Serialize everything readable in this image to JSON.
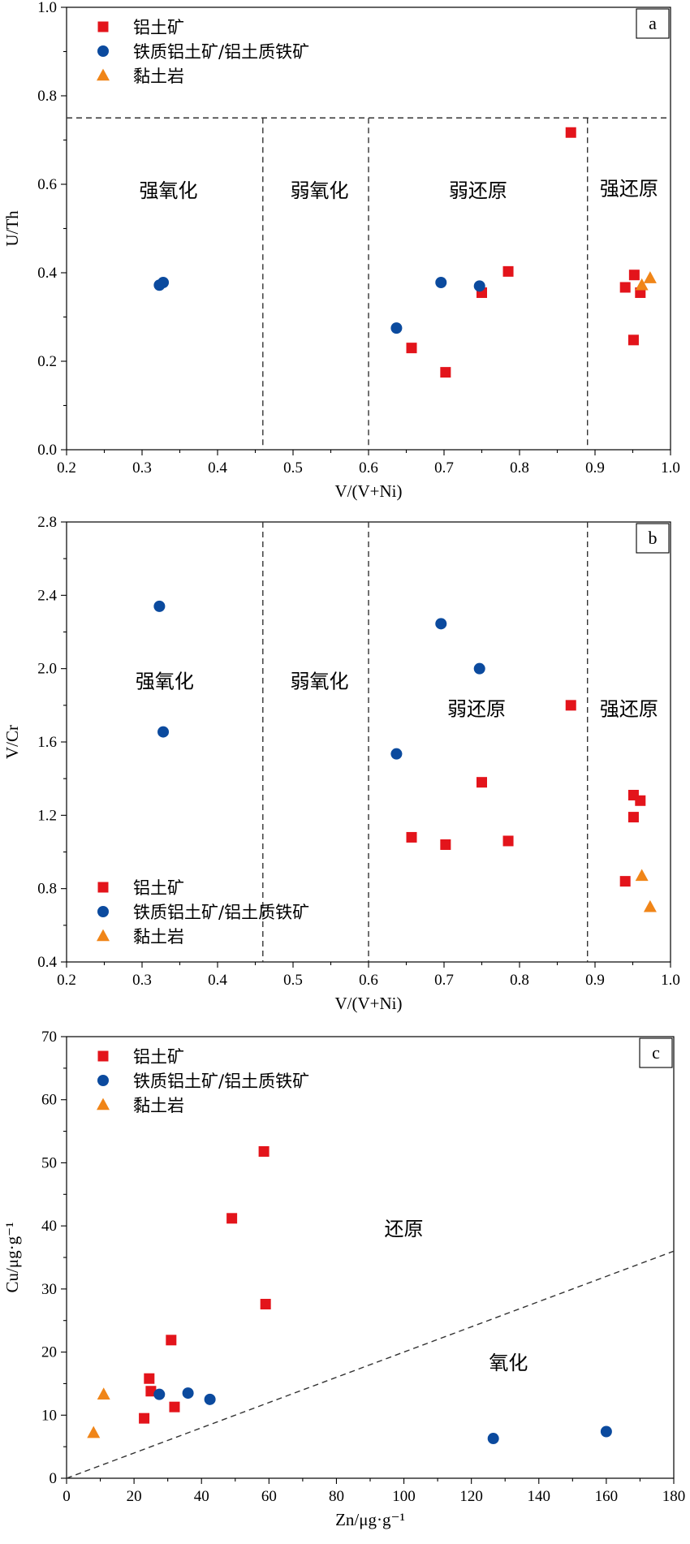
{
  "colors": {
    "bauxite": "#e3141b",
    "ferruginous": "#0b4a9e",
    "claystone": "#f08518"
  },
  "legend": [
    {
      "key": "bauxite",
      "label": "铝土矿",
      "marker": "square"
    },
    {
      "key": "ferruginous",
      "label": "铁质铝土矿/铝土质铁矿",
      "marker": "circle"
    },
    {
      "key": "claystone",
      "label": "黏土岩",
      "marker": "triangle"
    }
  ],
  "chart_data": [
    {
      "id": "a",
      "type": "scatter",
      "panel_letter": "a",
      "xlabel": "V/(V+Ni)",
      "ylabel": "U/Th",
      "xlim": [
        0.2,
        1.0
      ],
      "ylim": [
        0.0,
        1.0
      ],
      "xticks": [
        "0.2",
        "0.3",
        "0.4",
        "0.5",
        "0.6",
        "0.7",
        "0.8",
        "0.9",
        "1.0"
      ],
      "yticks": [
        "0.0",
        "0.2",
        "0.4",
        "0.6",
        "0.8",
        "1.0"
      ],
      "legend_position": "top-left",
      "vlines": [
        0.46,
        0.6,
        0.89
      ],
      "hlines": [
        0.75
      ],
      "regions": [
        {
          "label": "强氧化",
          "x": 0.335,
          "y": 0.585
        },
        {
          "label": "弱氧化",
          "x": 0.535,
          "y": 0.585
        },
        {
          "label": "弱还原",
          "x": 0.745,
          "y": 0.585
        },
        {
          "label": "强还原",
          "x": 0.945,
          "y": 0.59
        }
      ],
      "series": [
        {
          "key": "bauxite",
          "name": "铝土矿",
          "points": [
            [
              0.657,
              0.23
            ],
            [
              0.702,
              0.175
            ],
            [
              0.75,
              0.355
            ],
            [
              0.785,
              0.403
            ],
            [
              0.868,
              0.717
            ],
            [
              0.94,
              0.367
            ],
            [
              0.952,
              0.395
            ],
            [
              0.96,
              0.355
            ],
            [
              0.951,
              0.248
            ]
          ]
        },
        {
          "key": "ferruginous",
          "name": "铁质铝土矿/铝土质铁矿",
          "points": [
            [
              0.323,
              0.372
            ],
            [
              0.328,
              0.378
            ],
            [
              0.637,
              0.275
            ],
            [
              0.696,
              0.378
            ],
            [
              0.747,
              0.37
            ]
          ]
        },
        {
          "key": "claystone",
          "name": "黏土岩",
          "points": [
            [
              0.962,
              0.372
            ],
            [
              0.973,
              0.388
            ]
          ]
        }
      ]
    },
    {
      "id": "b",
      "type": "scatter",
      "panel_letter": "b",
      "xlabel": "V/(V+Ni)",
      "ylabel": "V/Cr",
      "xlim": [
        0.2,
        1.0
      ],
      "ylim": [
        0.4,
        2.8
      ],
      "xticks": [
        "0.2",
        "0.3",
        "0.4",
        "0.5",
        "0.6",
        "0.7",
        "0.8",
        "0.9",
        "1.0"
      ],
      "yticks": [
        "0.4",
        "0.8",
        "1.2",
        "1.6",
        "2.0",
        "2.4",
        "2.8"
      ],
      "legend_position": "bottom-left",
      "vlines": [
        0.46,
        0.6,
        0.89
      ],
      "hlines": [],
      "regions": [
        {
          "label": "强氧化",
          "x": 0.33,
          "y": 1.93
        },
        {
          "label": "弱氧化",
          "x": 0.535,
          "y": 1.93
        },
        {
          "label": "弱还原",
          "x": 0.743,
          "y": 1.78
        },
        {
          "label": "强还原",
          "x": 0.945,
          "y": 1.78
        }
      ],
      "series": [
        {
          "key": "bauxite",
          "name": "铝土矿",
          "points": [
            [
              0.657,
              1.08
            ],
            [
              0.702,
              1.04
            ],
            [
              0.75,
              1.38
            ],
            [
              0.785,
              1.06
            ],
            [
              0.868,
              1.8
            ],
            [
              0.94,
              0.84
            ],
            [
              0.951,
              1.31
            ],
            [
              0.96,
              1.28
            ],
            [
              0.951,
              1.19
            ]
          ]
        },
        {
          "key": "ferruginous",
          "name": "铁质铝土矿/铝土质铁矿",
          "points": [
            [
              0.323,
              2.34
            ],
            [
              0.328,
              1.655
            ],
            [
              0.637,
              1.535
            ],
            [
              0.696,
              2.245
            ],
            [
              0.747,
              2.0
            ]
          ]
        },
        {
          "key": "claystone",
          "name": "黏土岩",
          "points": [
            [
              0.962,
              0.87
            ],
            [
              0.973,
              0.7
            ]
          ]
        }
      ]
    },
    {
      "id": "c",
      "type": "scatter",
      "panel_letter": "c",
      "xlabel": "Zn/μg·g⁻¹",
      "ylabel": "Cu/μg·g⁻¹",
      "xlim": [
        0,
        180
      ],
      "ylim": [
        0,
        70
      ],
      "xticks": [
        "0",
        "20",
        "40",
        "60",
        "80",
        "100",
        "120",
        "140",
        "160",
        "180"
      ],
      "yticks": [
        "0",
        "10",
        "20",
        "30",
        "40",
        "50",
        "60",
        "70"
      ],
      "legend_position": "top-left",
      "diagonal": {
        "from": [
          0,
          0
        ],
        "to": [
          180,
          36
        ]
      },
      "regions": [
        {
          "label": "还原",
          "x": 100,
          "y": 39.5
        },
        {
          "label": "氧化",
          "x": 131,
          "y": 18.3
        }
      ],
      "series": [
        {
          "key": "bauxite",
          "name": "铝土矿",
          "points": [
            [
              23,
              9.5
            ],
            [
              24.5,
              15.8
            ],
            [
              25,
              13.8
            ],
            [
              31,
              21.9
            ],
            [
              32,
              11.3
            ],
            [
              49,
              41.2
            ],
            [
              58.5,
              51.8
            ],
            [
              59,
              27.6
            ]
          ]
        },
        {
          "key": "ferruginous",
          "name": "铁质铝土矿/铝土质铁矿",
          "points": [
            [
              27.5,
              13.3
            ],
            [
              36,
              13.5
            ],
            [
              42.5,
              12.5
            ],
            [
              126.5,
              6.3
            ],
            [
              160,
              7.4
            ]
          ]
        },
        {
          "key": "claystone",
          "name": "黏土岩",
          "points": [
            [
              8,
              7.2
            ],
            [
              11,
              13.3
            ]
          ]
        }
      ]
    }
  ]
}
